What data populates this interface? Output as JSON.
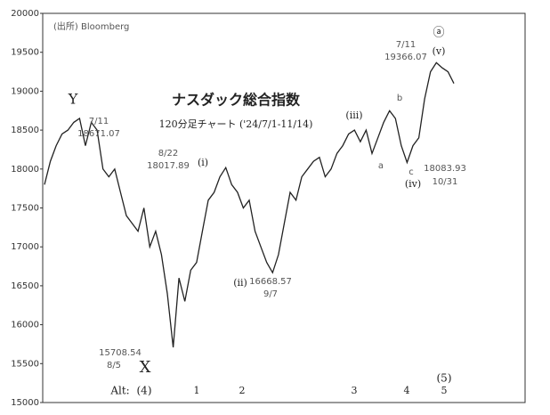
{
  "chart_data": {
    "type": "line",
    "title": "ナスダック総合指数",
    "subtitle": "120分足チャート ('24/7/1-11/14)",
    "source": "(出所) Bloomberg",
    "color": "#222222",
    "ylim": [
      15000,
      20000
    ],
    "yticks": [
      15000,
      15500,
      16000,
      16500,
      17000,
      17500,
      18000,
      18500,
      19000,
      19500,
      20000
    ],
    "values": [
      17800,
      18100,
      18300,
      18450,
      18500,
      18600,
      18650,
      18300,
      18600,
      18500,
      18000,
      17900,
      18000,
      17700,
      17400,
      17300,
      17200,
      17500,
      17000,
      17200,
      16900,
      16400,
      15708.54,
      16600,
      16300,
      16700,
      16800,
      17200,
      17600,
      17700,
      17900,
      18017.89,
      17800,
      17700,
      17500,
      17600,
      17200,
      17000,
      16800,
      16668.57,
      16900,
      17300,
      17700,
      17600,
      17900,
      18000,
      18100,
      18150,
      17900,
      18000,
      18200,
      18300,
      18450,
      18500,
      18350,
      18500,
      18200,
      18400,
      18600,
      18750,
      18650,
      18300,
      18083.93,
      18300,
      18400,
      18900,
      19250,
      19366.07,
      19300,
      19250,
      19100
    ],
    "annotations": [
      "Y",
      "7/11",
      "18671.07",
      "8/22",
      "18017.89",
      "(i)",
      "(ii)",
      "16668.57",
      "9/7",
      "(iii)",
      "a",
      "b",
      "c",
      "(iv)",
      "18083.93",
      "10/31",
      "7/11",
      "19366.07",
      "ⓐ",
      "(v)",
      "15708.54",
      "8/5",
      "X",
      "Alt:",
      "(4)",
      "1",
      "2",
      "3",
      "4",
      "(5)",
      "5"
    ]
  }
}
